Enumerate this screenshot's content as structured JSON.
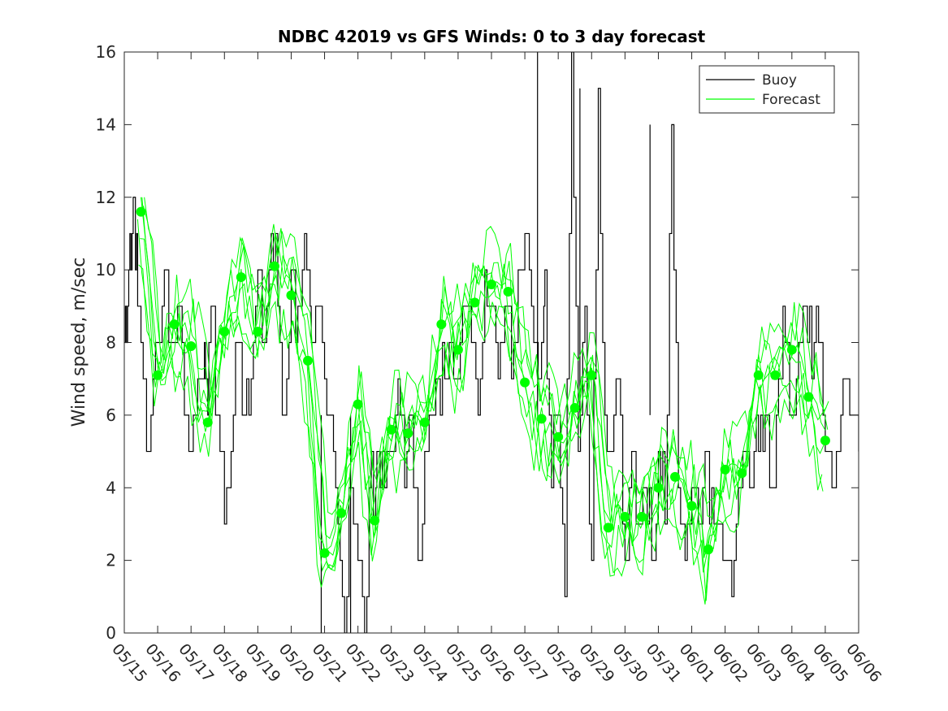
{
  "chart_data": {
    "type": "line",
    "title": "NDBC 42019 vs GFS Winds: 0 to 3 day forecast",
    "xlabel": "",
    "ylabel": "Wind speed, m/sec",
    "ylim": [
      0,
      16
    ],
    "yticks": [
      "0",
      "2",
      "4",
      "6",
      "8",
      "10",
      "12",
      "14",
      "16"
    ],
    "xlim_days": [
      0,
      22
    ],
    "xticks": [
      "05/15",
      "05/16",
      "05/17",
      "05/18",
      "05/19",
      "05/20",
      "05/21",
      "05/22",
      "05/23",
      "05/24",
      "05/25",
      "05/26",
      "05/27",
      "05/28",
      "05/29",
      "05/30",
      "05/31",
      "06/01",
      "06/02",
      "06/03",
      "06/04",
      "06/05",
      "06/06"
    ],
    "grid": false,
    "legend_position": "top-right",
    "colors": {
      "buoy": "#000000",
      "forecast": "#00ff00",
      "axes": "#262626"
    },
    "legend": [
      {
        "name": "Buoy",
        "color": "#000000"
      },
      {
        "name": "Forecast",
        "color": "#00ff00"
      }
    ],
    "series": [
      {
        "name": "Buoy",
        "x_days": [
          0,
          0.1,
          0.2,
          0.3,
          0.4,
          0.5,
          0.6,
          0.7,
          0.8,
          0.9,
          1.0,
          1.2,
          1.4,
          1.6,
          1.8,
          2.0,
          2.2,
          2.4,
          2.5,
          2.6,
          2.8,
          3.0,
          3.2,
          3.4,
          3.6,
          3.8,
          4.0,
          4.2,
          4.4,
          4.6,
          4.8,
          5.0,
          5.2,
          5.4,
          5.5,
          5.6,
          5.8,
          6.0,
          6.2,
          6.4,
          6.6,
          6.8,
          7.0,
          7.2,
          7.4,
          7.5,
          7.6,
          7.8,
          8.0,
          8.2,
          8.4,
          8.6,
          8.8,
          9.0,
          9.2,
          9.4,
          9.6,
          9.8,
          10.0,
          10.2,
          10.4,
          10.6,
          10.8,
          11.0,
          11.2,
          11.4,
          11.6,
          11.8,
          12.0,
          12.2,
          12.4,
          12.5,
          12.6,
          12.8,
          13.0,
          13.2,
          13.4,
          13.6,
          13.8,
          14.0,
          14.2,
          14.4,
          14.6,
          14.8,
          15.0,
          15.2,
          15.4,
          15.6,
          15.8,
          16.0,
          16.2,
          16.4,
          16.6,
          16.8,
          17.0,
          17.2,
          17.4,
          17.6,
          17.8,
          18.0,
          18.2,
          18.4,
          18.6,
          18.8,
          19.0,
          19.2,
          19.4,
          19.6,
          19.8,
          20.0,
          20.2,
          20.4,
          20.6,
          20.8,
          21.0,
          21.2,
          21.4,
          21.6,
          21.8,
          22.0
        ],
        "values": [
          8,
          9,
          10,
          12,
          9,
          8,
          7,
          5,
          6,
          7,
          8,
          10,
          8,
          9,
          6,
          5,
          7,
          8,
          6,
          9,
          6,
          3,
          5,
          8,
          6,
          7,
          10,
          8,
          11,
          9,
          6,
          10,
          9,
          11,
          10,
          8,
          9,
          7,
          6,
          3,
          0,
          4,
          2,
          0,
          5,
          3,
          5,
          4,
          5,
          7,
          4,
          6,
          2,
          5,
          6,
          7,
          7,
          8,
          7,
          9,
          8,
          6,
          10,
          9,
          7,
          9,
          7,
          10,
          11,
          9,
          7,
          8,
          10,
          4,
          6,
          1,
          16,
          5,
          9,
          2,
          15,
          6,
          5,
          7,
          2,
          5,
          3,
          4,
          2,
          5,
          3,
          14,
          4,
          2,
          4,
          3,
          5,
          4,
          3,
          2,
          1,
          4,
          5,
          4,
          5,
          6,
          4,
          7,
          8,
          6,
          8,
          9,
          7,
          8,
          5,
          4,
          5,
          7,
          6,
          5
        ],
        "spikes": [
          {
            "x_day": 12.38,
            "value": 16
          },
          {
            "x_day": 13.65,
            "value": 15
          },
          {
            "x_day": 15.75,
            "value": 14
          },
          {
            "x_day": 5.9,
            "value": 0
          },
          {
            "x_day": 6.78,
            "value": 0
          }
        ]
      },
      {
        "name": "Forecast",
        "x_days": [
          0.5,
          1.0,
          1.5,
          2.0,
          2.5,
          3.0,
          3.5,
          4.0,
          4.5,
          5.0,
          5.5,
          6.0,
          6.5,
          7.0,
          7.5,
          8.0,
          8.5,
          9.0,
          9.5,
          10.0,
          10.5,
          11.0,
          11.5,
          12.0,
          12.5,
          13.0,
          13.5,
          14.0,
          14.5,
          15.0,
          15.5,
          16.0,
          16.5,
          17.0,
          17.5,
          18.0,
          18.5,
          19.0,
          19.5,
          20.0,
          20.5,
          21.0
        ],
        "values": [
          11.6,
          7.1,
          8.5,
          7.9,
          5.8,
          8.3,
          9.8,
          8.3,
          10.1,
          9.3,
          7.5,
          2.2,
          3.3,
          6.3,
          3.1,
          5.6,
          5.5,
          5.8,
          8.5,
          7.8,
          9.1,
          9.6,
          9.4,
          6.9,
          5.9,
          5.4,
          6.2,
          7.1,
          2.9,
          3.2,
          3.2,
          4.0,
          4.3,
          3.5,
          2.3,
          4.5,
          4.4,
          7.1,
          7.1,
          7.8,
          6.5,
          5.3
        ]
      }
    ]
  }
}
